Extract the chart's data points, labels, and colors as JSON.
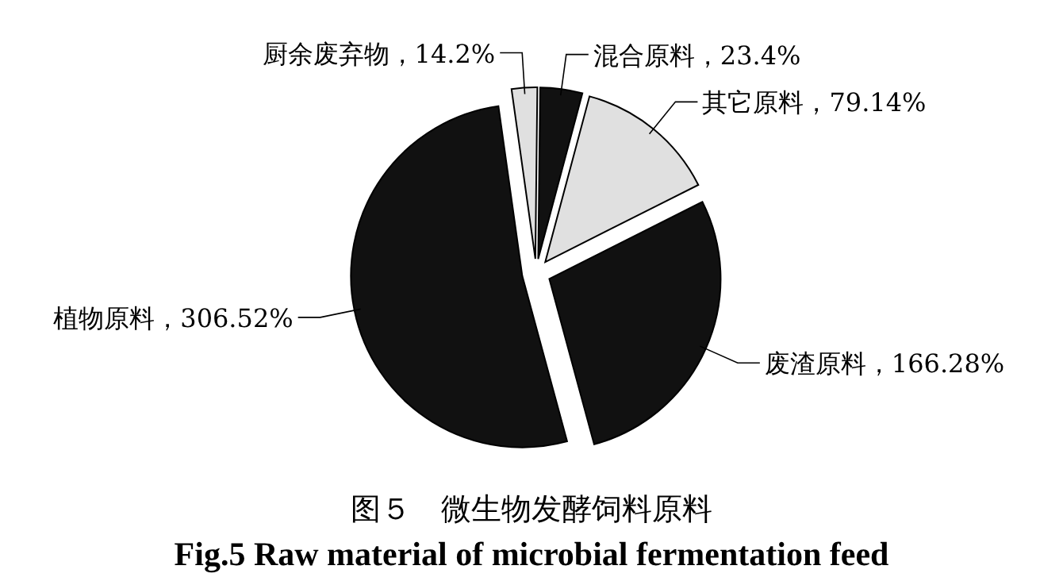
{
  "chart_data": {
    "type": "pie",
    "title": "图５　微生物发酵饲料原料",
    "subtitle": "Fig.5 Raw material of microbial fermentation feed",
    "categories": [
      "厨余废弃物",
      "混合原料",
      "其它原料",
      "废渣原料",
      "植物原料"
    ],
    "values": [
      14.2,
      23.4,
      79.14,
      166.28,
      306.52
    ],
    "value_labels": [
      "14.2%",
      "23.4%",
      "79.14%",
      "166.28%",
      "306.52%"
    ],
    "colors": [
      "#e0e0e0",
      "#111111",
      "#e0e0e0",
      "#111111",
      "#111111"
    ]
  }
}
